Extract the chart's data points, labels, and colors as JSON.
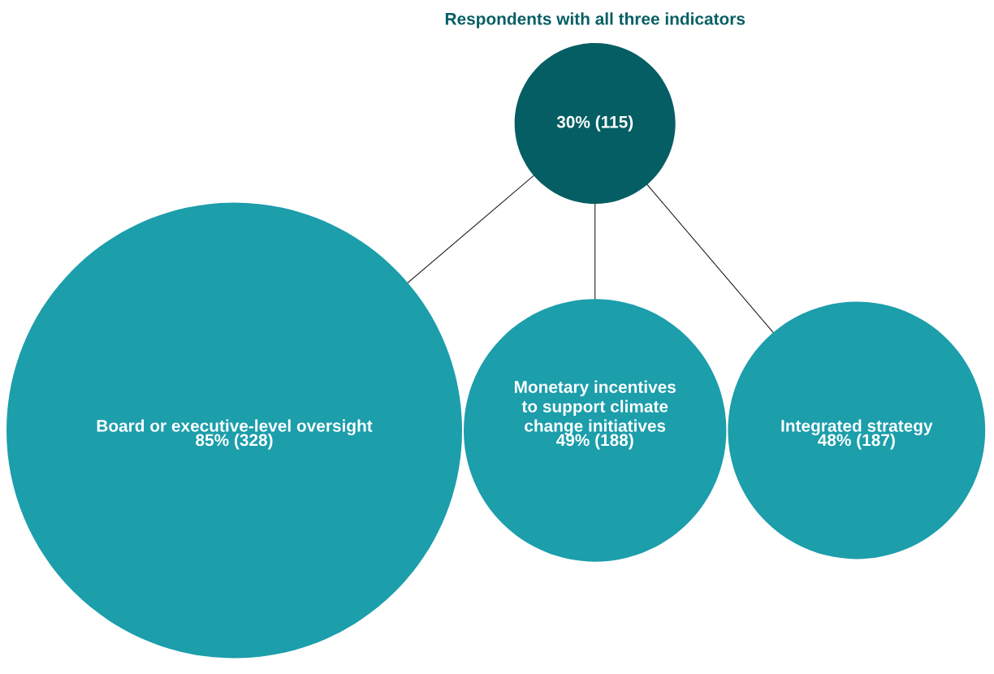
{
  "chart_data": {
    "type": "other",
    "title": "Respondents with all three indicators",
    "categories": [
      null,
      "Board or executive-level oversight",
      "Monetary incentives\nto support climate\nchange initiatives",
      "Integrated strategy"
    ],
    "values": [
      30,
      85,
      49,
      48
    ],
    "value_labels": [
      "30% (115)",
      "85% (328)",
      "49% (188)",
      "48% (187)"
    ],
    "colors": [
      "#055e63",
      "#1c9eab",
      "#1c9eab",
      "#1c9eab"
    ]
  }
}
